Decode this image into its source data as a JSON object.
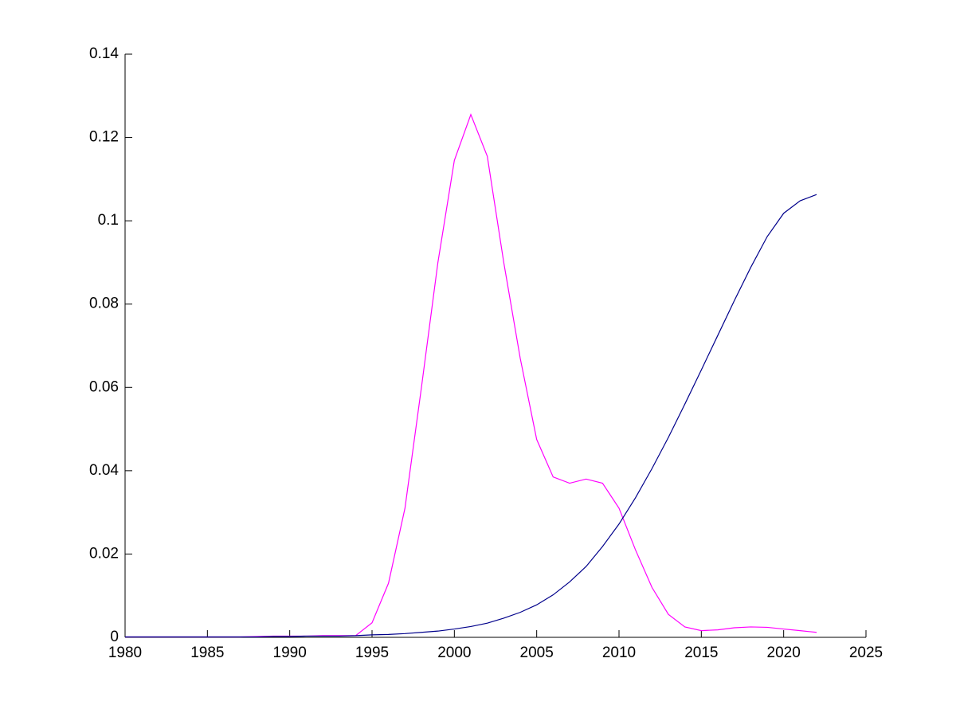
{
  "chart_data": {
    "type": "line",
    "x": [
      1980,
      1981,
      1982,
      1983,
      1984,
      1985,
      1986,
      1987,
      1988,
      1989,
      1990,
      1991,
      1992,
      1993,
      1994,
      1995,
      1996,
      1997,
      1998,
      1999,
      2000,
      2001,
      2002,
      2003,
      2004,
      2005,
      2006,
      2007,
      2008,
      2009,
      2010,
      2011,
      2012,
      2013,
      2014,
      2015,
      2016,
      2017,
      2018,
      2019,
      2020,
      2021,
      2022
    ],
    "series": [
      {
        "color": "#ff00ff",
        "values": [
          0.0001,
          0.0001,
          0.0001,
          0.0001,
          0.0001,
          0.0001,
          0.0001,
          0.0001,
          0.0002,
          0.0003,
          0.0003,
          0.0003,
          0.0004,
          0.0004,
          0.0004,
          0.0035,
          0.013,
          0.031,
          0.06,
          0.09,
          0.1145,
          0.1255,
          0.1155,
          0.09,
          0.067,
          0.0475,
          0.0385,
          0.037,
          0.038,
          0.037,
          0.031,
          0.021,
          0.012,
          0.0055,
          0.0025,
          0.0016,
          0.0018,
          0.0023,
          0.0025,
          0.0024,
          0.002,
          0.0016,
          0.0012
        ]
      },
      {
        "color": "#00008b",
        "values": [
          0.0001,
          0.0001,
          0.0001,
          0.0001,
          0.0001,
          0.0001,
          0.0001,
          0.0001,
          0.0001,
          0.0002,
          0.0002,
          0.0003,
          0.0003,
          0.0003,
          0.0004,
          0.0006,
          0.0007,
          0.0009,
          0.0012,
          0.0015,
          0.002,
          0.0026,
          0.0034,
          0.0046,
          0.006,
          0.0078,
          0.0102,
          0.0133,
          0.017,
          0.0218,
          0.0272,
          0.0335,
          0.0405,
          0.048,
          0.056,
          0.0642,
          0.0725,
          0.0808,
          0.0888,
          0.0962,
          0.1018,
          0.1048,
          0.1063
        ]
      }
    ],
    "xlim": [
      1980,
      2025
    ],
    "xticks": [
      1980,
      1985,
      1990,
      1995,
      2000,
      2005,
      2010,
      2015,
      2020,
      2025
    ],
    "ylim": [
      0,
      0.14
    ],
    "yticks": [
      0,
      0.02,
      0.04,
      0.06,
      0.08,
      0.1,
      0.12,
      0.14
    ],
    "grid": false
  }
}
